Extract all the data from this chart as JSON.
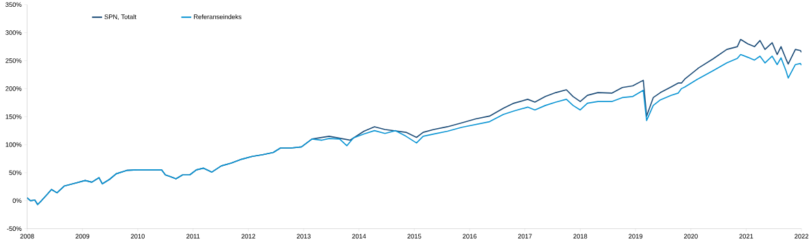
{
  "chart_data": {
    "type": "line",
    "xlim": [
      2008,
      2022
    ],
    "xticks": [
      2008,
      2009,
      2010,
      2011,
      2012,
      2013,
      2014,
      2015,
      2016,
      2017,
      2018,
      2019,
      2020,
      2021,
      2022
    ],
    "ylim": [
      -50,
      350
    ],
    "yticks": [
      {
        "value": -50,
        "label": "-50%"
      },
      {
        "value": 0,
        "label": "0%"
      },
      {
        "value": 50,
        "label": "50%"
      },
      {
        "value": 100,
        "label": "100%"
      },
      {
        "value": 150,
        "label": "150%"
      },
      {
        "value": 200,
        "label": "200%"
      },
      {
        "value": 250,
        "label": "250%"
      },
      {
        "value": 300,
        "label": "300%"
      },
      {
        "value": 350,
        "label": "350%"
      }
    ],
    "legend": "top left",
    "grid": false,
    "marker": "none",
    "line_style": "solid",
    "series": [
      {
        "name": "SPN, Totalt",
        "color": "#1f4e79",
        "x": [
          2008.0,
          2008.06,
          2008.14,
          2008.19,
          2008.26,
          2008.37,
          2008.44,
          2008.54,
          2008.67,
          2008.86,
          2009.05,
          2009.17,
          2009.3,
          2009.36,
          2009.49,
          2009.61,
          2009.8,
          2009.99,
          2010.43,
          2010.5,
          2010.59,
          2010.69,
          2010.81,
          2010.94,
          2011.06,
          2011.19,
          2011.34,
          2011.51,
          2011.69,
          2011.88,
          2012.07,
          2012.26,
          2012.45,
          2012.58,
          2012.77,
          2012.96,
          2013.15,
          2013.46,
          2013.84,
          2014.09,
          2014.28,
          2014.47,
          2014.85,
          2015.04,
          2015.16,
          2015.35,
          2015.6,
          2015.86,
          2016.11,
          2016.36,
          2016.61,
          2016.8,
          2017.05,
          2017.18,
          2017.37,
          2017.56,
          2017.75,
          2017.87,
          2018.0,
          2018.13,
          2018.32,
          2018.57,
          2018.76,
          2018.95,
          2019.14,
          2019.2,
          2019.32,
          2019.45,
          2019.64,
          2019.77,
          2019.83,
          2019.89,
          2020.14,
          2020.4,
          2020.65,
          2020.84,
          2020.9,
          2021.03,
          2021.15,
          2021.25,
          2021.34,
          2021.47,
          2021.56,
          2021.63,
          2021.72,
          2021.76,
          2021.89,
          2021.98,
          2022.0
        ],
        "values": [
          5,
          0,
          1,
          -7,
          0,
          12,
          20,
          14,
          26,
          31,
          36,
          33,
          41,
          30,
          38,
          48,
          54,
          55,
          55,
          46,
          43,
          39,
          46,
          46,
          55,
          58,
          51,
          62,
          67,
          74,
          79,
          82,
          86,
          94,
          94,
          96,
          110,
          115,
          108,
          124,
          132,
          127,
          122,
          113,
          122,
          127,
          132,
          139,
          146,
          151,
          165,
          174,
          181,
          176,
          186,
          193,
          198,
          186,
          177,
          188,
          193,
          192,
          202,
          205,
          215,
          151,
          184,
          193,
          203,
          210,
          210,
          217,
          237,
          253,
          270,
          275,
          288,
          280,
          275,
          286,
          270,
          282,
          261,
          275,
          253,
          244,
          270,
          268,
          265
        ]
      },
      {
        "name": "Referanseindeks",
        "color": "#0e96d4",
        "x": [
          2008.0,
          2008.06,
          2008.14,
          2008.19,
          2008.26,
          2008.37,
          2008.44,
          2008.54,
          2008.67,
          2008.86,
          2009.05,
          2009.17,
          2009.3,
          2009.36,
          2009.49,
          2009.61,
          2009.8,
          2009.99,
          2010.43,
          2010.5,
          2010.59,
          2010.69,
          2010.81,
          2010.94,
          2011.06,
          2011.19,
          2011.34,
          2011.51,
          2011.69,
          2011.88,
          2012.07,
          2012.26,
          2012.45,
          2012.58,
          2012.77,
          2012.96,
          2013.15,
          2013.33,
          2013.46,
          2013.65,
          2013.78,
          2013.9,
          2014.09,
          2014.28,
          2014.47,
          2014.66,
          2014.85,
          2015.04,
          2015.16,
          2015.35,
          2015.6,
          2015.86,
          2016.11,
          2016.36,
          2016.61,
          2016.8,
          2017.05,
          2017.18,
          2017.37,
          2017.56,
          2017.75,
          2017.87,
          2018.0,
          2018.13,
          2018.32,
          2018.57,
          2018.76,
          2018.95,
          2019.14,
          2019.2,
          2019.32,
          2019.45,
          2019.64,
          2019.77,
          2019.83,
          2019.89,
          2020.14,
          2020.4,
          2020.65,
          2020.84,
          2020.9,
          2021.03,
          2021.15,
          2021.25,
          2021.34,
          2021.47,
          2021.56,
          2021.63,
          2021.72,
          2021.76,
          2021.89,
          2021.98,
          2022.0
        ],
        "values": [
          5,
          0,
          1,
          -7,
          0,
          12,
          20,
          14,
          26,
          31,
          36,
          33,
          41,
          30,
          38,
          48,
          54,
          55,
          55,
          46,
          43,
          39,
          46,
          46,
          55,
          58,
          51,
          62,
          67,
          74,
          79,
          82,
          86,
          94,
          94,
          96,
          110,
          108,
          111,
          110,
          98,
          112,
          119,
          125,
          120,
          125,
          115,
          103,
          115,
          119,
          124,
          131,
          136,
          141,
          154,
          160,
          167,
          162,
          170,
          176,
          181,
          170,
          162,
          174,
          177,
          177,
          184,
          186,
          197,
          143,
          170,
          180,
          188,
          192,
          200,
          203,
          218,
          232,
          246,
          254,
          261,
          256,
          251,
          258,
          246,
          258,
          243,
          255,
          232,
          219,
          243,
          245,
          242
        ]
      }
    ]
  }
}
